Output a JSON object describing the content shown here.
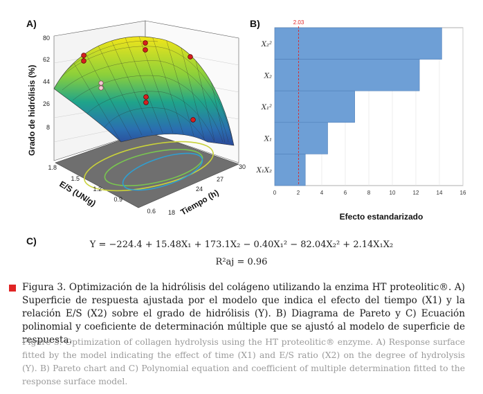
{
  "panels": {
    "a": "A)",
    "b": "B)",
    "c": "C)"
  },
  "surface_plot": {
    "zlabel": "Grado de hidrólisis (%)",
    "xlabel": "Tiempo (h)",
    "ylabel": "E/S (UN/g)",
    "z_ticks": [
      "80",
      "62",
      "44",
      "26",
      "8"
    ],
    "x_ticks": [
      "18",
      "24",
      "27",
      "30"
    ],
    "y_ticks": [
      "0.6",
      "0.9",
      "1.2",
      "1.5",
      "1.8"
    ]
  },
  "chart_data": {
    "type": "bar",
    "orientation": "horizontal",
    "categories": [
      "X2^2",
      "X2",
      "X1^2",
      "X1",
      "X1X2"
    ],
    "category_labels": [
      "X₂²",
      "X₂",
      "X₁²",
      "X₁",
      "X₁X₂"
    ],
    "values": [
      14.2,
      12.3,
      6.8,
      4.5,
      2.6
    ],
    "xlabel": "Efecto estandarizado",
    "xlim": [
      0,
      16
    ],
    "x_ticks": [
      "0",
      "2",
      "4",
      "6",
      "8",
      "10",
      "12",
      "14",
      "16"
    ],
    "reference_line": {
      "value": 2.03,
      "label": "2.03",
      "color": "#e02424"
    },
    "bar_color": "#6e9fd6"
  },
  "equation": {
    "main": "Y = −224.4 + 15.48X₁ + 173.1X₂ − 0.40X₁² − 82.04X₂² + 2.14X₁X₂",
    "r2": "R²aj = 0.96"
  },
  "caption_es": "Figura 3. Optimización de la hidrólisis del colágeno utilizando la enzima HT proteolitic®. A) Superficie de respuesta ajustada por el modelo que indica el efecto del tiempo (X1) y la relación E/S (X2) sobre el grado de hidrólisis (Y). B) Diagrama de Pareto y C) Ecuación polinomial y coeficiente de determinación múltiple que se ajustó al modelo de superficie de respuesta.",
  "caption_en": "Figure 3. Optimization of collagen hydrolysis using the HT proteolitic® enzyme. A) Response surface fitted by the model indicating the effect of time (X1) and E/S ratio (X2) on the degree of hydrolysis (Y). B) Pareto chart and C) Polynomial equation and coefficient of multiple determination fitted to the response surface model.",
  "colors": {
    "accent_red": "#e02424",
    "bar_blue": "#6e9fd6"
  }
}
